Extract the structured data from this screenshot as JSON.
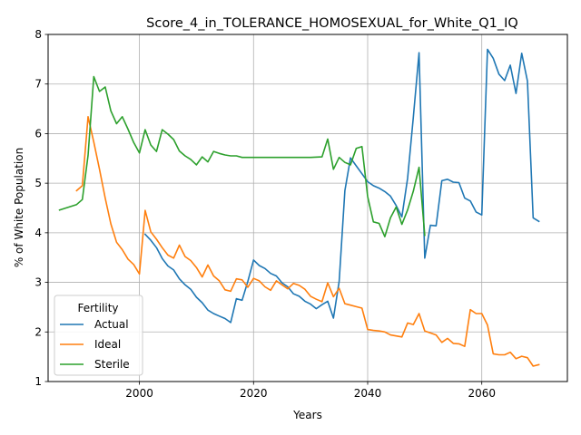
{
  "chart_data": {
    "type": "line",
    "title": "Score_4_in_TOLERANCE_HOMOSEXUAL_for_White_Q1_IQ",
    "xlabel": "Years",
    "ylabel": "% of White Population",
    "xlim": [
      1984,
      2075
    ],
    "ylim": [
      1,
      8
    ],
    "xticks": [
      2000,
      2020,
      2040,
      2060
    ],
    "yticks": [
      1,
      2,
      3,
      4,
      5,
      6,
      7,
      8
    ],
    "grid": true,
    "legend": {
      "title": "Fertility",
      "position": "lower-left"
    },
    "series": [
      {
        "name": "Actual",
        "color": "#1f77b4",
        "points": [
          [
            2001,
            3.97
          ],
          [
            2002,
            3.85
          ],
          [
            2003,
            3.7
          ],
          [
            2004,
            3.48
          ],
          [
            2005,
            3.33
          ],
          [
            2006,
            3.25
          ],
          [
            2007,
            3.07
          ],
          [
            2008,
            2.95
          ],
          [
            2009,
            2.86
          ],
          [
            2010,
            2.7
          ],
          [
            2011,
            2.59
          ],
          [
            2012,
            2.44
          ],
          [
            2013,
            2.37
          ],
          [
            2014,
            2.32
          ],
          [
            2015,
            2.27
          ],
          [
            2016,
            2.19
          ],
          [
            2017,
            2.67
          ],
          [
            2018,
            2.64
          ],
          [
            2019,
            3.02
          ],
          [
            2020,
            3.45
          ],
          [
            2021,
            3.34
          ],
          [
            2022,
            3.28
          ],
          [
            2023,
            3.18
          ],
          [
            2024,
            3.13
          ],
          [
            2025,
            2.99
          ],
          [
            2026,
            2.91
          ],
          [
            2027,
            2.77
          ],
          [
            2028,
            2.72
          ],
          [
            2029,
            2.62
          ],
          [
            2030,
            2.56
          ],
          [
            2031,
            2.47
          ],
          [
            2032,
            2.55
          ],
          [
            2033,
            2.62
          ],
          [
            2034,
            2.28
          ],
          [
            2035,
            3.02
          ],
          [
            2036,
            4.85
          ],
          [
            2037,
            5.51
          ],
          [
            2038,
            5.35
          ],
          [
            2039,
            5.19
          ],
          [
            2040,
            5.03
          ],
          [
            2041,
            4.95
          ],
          [
            2042,
            4.9
          ],
          [
            2043,
            4.83
          ],
          [
            2044,
            4.74
          ],
          [
            2045,
            4.55
          ],
          [
            2046,
            4.32
          ],
          [
            2047,
            5.1
          ],
          [
            2048,
            6.33
          ],
          [
            2049,
            7.63
          ],
          [
            2050,
            3.49
          ],
          [
            2051,
            4.15
          ],
          [
            2052,
            4.14
          ],
          [
            2053,
            5.05
          ],
          [
            2054,
            5.08
          ],
          [
            2055,
            5.02
          ],
          [
            2056,
            5.01
          ],
          [
            2057,
            4.7
          ],
          [
            2058,
            4.64
          ],
          [
            2059,
            4.42
          ],
          [
            2060,
            4.36
          ],
          [
            2061,
            7.7
          ],
          [
            2062,
            7.52
          ],
          [
            2063,
            7.2
          ],
          [
            2064,
            7.07
          ],
          [
            2065,
            7.38
          ],
          [
            2066,
            6.81
          ],
          [
            2067,
            7.62
          ],
          [
            2068,
            7.06
          ],
          [
            2069,
            4.3
          ],
          [
            2070,
            4.23
          ]
        ]
      },
      {
        "name": "Ideal",
        "color": "#ff7f0e",
        "points": [
          [
            1989,
            4.85
          ],
          [
            1990,
            4.95
          ],
          [
            1991,
            6.34
          ],
          [
            1992,
            5.83
          ],
          [
            1993,
            5.28
          ],
          [
            1994,
            4.7
          ],
          [
            1995,
            4.18
          ],
          [
            1996,
            3.81
          ],
          [
            1997,
            3.66
          ],
          [
            1998,
            3.47
          ],
          [
            1999,
            3.36
          ],
          [
            2000,
            3.17
          ],
          [
            2001,
            4.45
          ],
          [
            2002,
            4.02
          ],
          [
            2003,
            3.87
          ],
          [
            2004,
            3.7
          ],
          [
            2005,
            3.55
          ],
          [
            2006,
            3.49
          ],
          [
            2007,
            3.75
          ],
          [
            2008,
            3.52
          ],
          [
            2009,
            3.44
          ],
          [
            2010,
            3.3
          ],
          [
            2011,
            3.11
          ],
          [
            2012,
            3.35
          ],
          [
            2013,
            3.13
          ],
          [
            2014,
            3.03
          ],
          [
            2015,
            2.85
          ],
          [
            2016,
            2.82
          ],
          [
            2017,
            3.07
          ],
          [
            2018,
            3.05
          ],
          [
            2019,
            2.9
          ],
          [
            2020,
            3.08
          ],
          [
            2021,
            3.03
          ],
          [
            2022,
            2.91
          ],
          [
            2023,
            2.84
          ],
          [
            2024,
            3.03
          ],
          [
            2025,
            2.95
          ],
          [
            2026,
            2.87
          ],
          [
            2027,
            2.98
          ],
          [
            2028,
            2.94
          ],
          [
            2029,
            2.86
          ],
          [
            2030,
            2.72
          ],
          [
            2031,
            2.66
          ],
          [
            2032,
            2.61
          ],
          [
            2033,
            2.99
          ],
          [
            2034,
            2.71
          ],
          [
            2035,
            2.88
          ],
          [
            2036,
            2.57
          ],
          [
            2037,
            2.54
          ],
          [
            2038,
            2.51
          ],
          [
            2039,
            2.48
          ],
          [
            2040,
            2.05
          ],
          [
            2041,
            2.03
          ],
          [
            2042,
            2.02
          ],
          [
            2043,
            2.0
          ],
          [
            2044,
            1.94
          ],
          [
            2045,
            1.92
          ],
          [
            2046,
            1.9
          ],
          [
            2047,
            2.18
          ],
          [
            2048,
            2.15
          ],
          [
            2049,
            2.37
          ],
          [
            2050,
            2.02
          ],
          [
            2051,
            1.98
          ],
          [
            2052,
            1.94
          ],
          [
            2053,
            1.79
          ],
          [
            2054,
            1.87
          ],
          [
            2055,
            1.77
          ],
          [
            2056,
            1.76
          ],
          [
            2057,
            1.71
          ],
          [
            2058,
            2.45
          ],
          [
            2059,
            2.37
          ],
          [
            2060,
            2.37
          ],
          [
            2061,
            2.14
          ],
          [
            2062,
            1.56
          ],
          [
            2063,
            1.54
          ],
          [
            2064,
            1.54
          ],
          [
            2065,
            1.59
          ],
          [
            2066,
            1.46
          ],
          [
            2067,
            1.51
          ],
          [
            2068,
            1.48
          ],
          [
            2069,
            1.31
          ],
          [
            2070,
            1.34
          ]
        ]
      },
      {
        "name": "Sterile",
        "color": "#2ca02c",
        "points": [
          [
            1986,
            4.46
          ],
          [
            1989,
            4.57
          ],
          [
            1990,
            4.67
          ],
          [
            1991,
            5.56
          ],
          [
            1992,
            7.15
          ],
          [
            1993,
            6.85
          ],
          [
            1994,
            6.94
          ],
          [
            1995,
            6.46
          ],
          [
            1996,
            6.2
          ],
          [
            1997,
            6.34
          ],
          [
            1998,
            6.09
          ],
          [
            1999,
            5.82
          ],
          [
            2000,
            5.61
          ],
          [
            2001,
            6.08
          ],
          [
            2002,
            5.77
          ],
          [
            2003,
            5.64
          ],
          [
            2004,
            6.08
          ],
          [
            2005,
            5.99
          ],
          [
            2006,
            5.88
          ],
          [
            2007,
            5.65
          ],
          [
            2008,
            5.55
          ],
          [
            2009,
            5.48
          ],
          [
            2010,
            5.37
          ],
          [
            2011,
            5.53
          ],
          [
            2012,
            5.43
          ],
          [
            2013,
            5.64
          ],
          [
            2014,
            5.6
          ],
          [
            2015,
            5.57
          ],
          [
            2016,
            5.55
          ],
          [
            2017,
            5.55
          ],
          [
            2018,
            5.52
          ],
          [
            2020,
            5.52
          ],
          [
            2025,
            5.52
          ],
          [
            2030,
            5.52
          ],
          [
            2032,
            5.53
          ],
          [
            2033,
            5.89
          ],
          [
            2034,
            5.28
          ],
          [
            2035,
            5.52
          ],
          [
            2036,
            5.42
          ],
          [
            2037,
            5.37
          ],
          [
            2038,
            5.7
          ],
          [
            2039,
            5.74
          ],
          [
            2040,
            4.73
          ],
          [
            2041,
            4.22
          ],
          [
            2042,
            4.19
          ],
          [
            2043,
            3.92
          ],
          [
            2044,
            4.3
          ],
          [
            2045,
            4.52
          ],
          [
            2046,
            4.17
          ],
          [
            2047,
            4.46
          ],
          [
            2048,
            4.84
          ],
          [
            2049,
            5.32
          ],
          [
            2050,
            3.95
          ]
        ]
      }
    ]
  }
}
